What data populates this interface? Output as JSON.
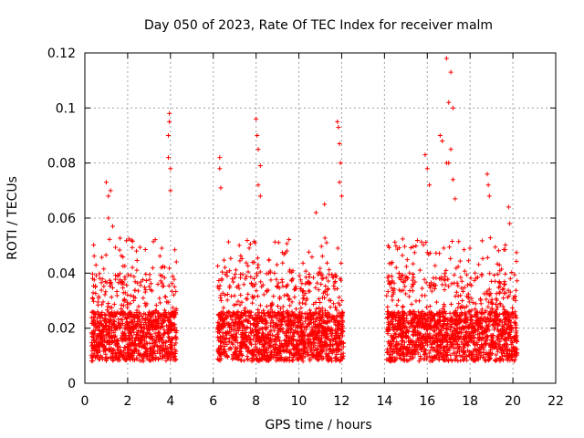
{
  "chart_data": {
    "type": "scatter",
    "title": "Day 050 of 2023, Rate Of TEC Index for receiver malm",
    "xlabel": "GPS time / hours",
    "ylabel": "ROTI / TECUs",
    "xlim": [
      0,
      22
    ],
    "ylim": [
      0,
      0.12
    ],
    "x_ticks": [
      "0",
      "2",
      "4",
      "6",
      "8",
      "10",
      "12",
      "14",
      "16",
      "18",
      "20",
      "22"
    ],
    "y_ticks": [
      "0",
      "0.02",
      "0.04",
      "0.06",
      "0.08",
      "0.1",
      "0.12"
    ],
    "grid": true,
    "marker": "+",
    "color": "#ff0000",
    "series": [
      {
        "name": "ROTI",
        "description_segments": [
          {
            "start": 0.3,
            "end": 4.3,
            "typical": 0.018
          },
          {
            "start": 6.2,
            "end": 12.1,
            "typical": 0.018
          },
          {
            "start": 14.1,
            "end": 20.2,
            "typical": 0.018
          }
        ],
        "points": [
          [
            1.0,
            0.073
          ],
          [
            1.1,
            0.068
          ],
          [
            1.2,
            0.07
          ],
          [
            1.1,
            0.06
          ],
          [
            1.3,
            0.057
          ],
          [
            3.95,
            0.098
          ],
          [
            3.95,
            0.095
          ],
          [
            3.9,
            0.09
          ],
          [
            3.9,
            0.082
          ],
          [
            4.0,
            0.078
          ],
          [
            4.0,
            0.07
          ],
          [
            6.3,
            0.082
          ],
          [
            6.3,
            0.078
          ],
          [
            6.35,
            0.071
          ],
          [
            8.0,
            0.096
          ],
          [
            8.05,
            0.09
          ],
          [
            8.1,
            0.085
          ],
          [
            8.2,
            0.079
          ],
          [
            8.1,
            0.072
          ],
          [
            8.2,
            0.068
          ],
          [
            11.8,
            0.095
          ],
          [
            11.85,
            0.093
          ],
          [
            11.9,
            0.087
          ],
          [
            11.95,
            0.08
          ],
          [
            11.9,
            0.073
          ],
          [
            12.0,
            0.068
          ],
          [
            10.8,
            0.062
          ],
          [
            11.2,
            0.065
          ],
          [
            15.9,
            0.083
          ],
          [
            16.0,
            0.078
          ],
          [
            16.1,
            0.072
          ],
          [
            16.6,
            0.09
          ],
          [
            16.7,
            0.088
          ],
          [
            16.9,
            0.08
          ],
          [
            16.9,
            0.118
          ],
          [
            17.0,
            0.102
          ],
          [
            17.1,
            0.113
          ],
          [
            17.2,
            0.1
          ],
          [
            17.1,
            0.085
          ],
          [
            17.0,
            0.08
          ],
          [
            17.2,
            0.074
          ],
          [
            17.3,
            0.067
          ],
          [
            18.8,
            0.076
          ],
          [
            18.85,
            0.072
          ],
          [
            18.9,
            0.068
          ],
          [
            19.8,
            0.064
          ],
          [
            19.85,
            0.058
          ]
        ]
      }
    ]
  }
}
